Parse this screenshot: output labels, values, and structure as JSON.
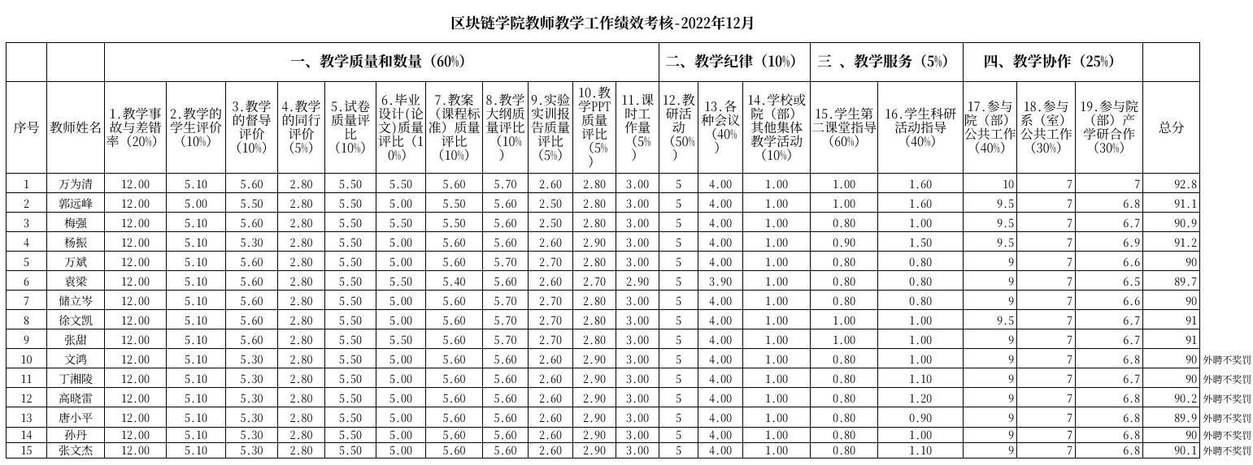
{
  "title": "区块链学院教师教学工作绩效考核-2022年12月",
  "table": {
    "corner_headers": [
      "序号",
      "教师姓名"
    ],
    "groups": [
      {
        "label": "一、教学质量和数量（60%）",
        "span": 11
      },
      {
        "label": "二、教学纪律（10%）",
        "span": 3
      },
      {
        "label": "三 、教学服务（5%）",
        "span": 2
      },
      {
        "label": "四、教学协作（25%）",
        "span": 3
      }
    ],
    "columns": [
      {
        "label": "1.教学事故与差错率（20%）"
      },
      {
        "label": "2.教学的学生评价（10%）"
      },
      {
        "label": "3.教学的督导评价（10%）"
      },
      {
        "label": "4.教学的同行评价（5%）"
      },
      {
        "label": "5.试卷质量评比（10%）"
      },
      {
        "label": "6.毕业设计(论文)质量评比（10%）"
      },
      {
        "label": "7.教案（课程标准）质量评比（10%）"
      },
      {
        "label": "8.教学大纲质量评比（10%）"
      },
      {
        "label": "9.实验实训报告质量评比（5%）"
      },
      {
        "label": "10.教学PPT质量评比（5%）"
      },
      {
        "label": "11.课时工作量（5%）"
      },
      {
        "label": "12.教研活动（50%）"
      },
      {
        "label": "13.各种会议（40%）"
      },
      {
        "label": "14.学校或院（部）其他集体教学活动（10%）"
      },
      {
        "label": "15.学生第二课堂指导（60%）"
      },
      {
        "label": "16.学生科研活动指导（40%）"
      },
      {
        "label": "17.参与院（部）公共工作（40%）"
      },
      {
        "label": "18.参与系（室）公共工作（30%）"
      },
      {
        "label": "19.参与院（部）产学研合作（30%）"
      }
    ],
    "total_header": "总分",
    "rows": [
      {
        "no": "1",
        "name": "万为清",
        "values": [
          "12.00",
          "5.10",
          "5.60",
          "2.80",
          "5.50",
          "5.50",
          "5.60",
          "5.70",
          "2.60",
          "2.80",
          "3.00",
          "5",
          "4.00",
          "1.00",
          "1.00",
          "1.60",
          "10",
          "7",
          "7"
        ],
        "total": "92.8",
        "note": ""
      },
      {
        "no": "2",
        "name": "郭远峰",
        "values": [
          "12.00",
          "5.00",
          "5.50",
          "2.80",
          "5.50",
          "5.00",
          "5.50",
          "5.60",
          "2.50",
          "2.80",
          "3.00",
          "5",
          "4.00",
          "1.00",
          "1.00",
          "1.60",
          "9.5",
          "7",
          "6.8"
        ],
        "total": "91.1",
        "note": ""
      },
      {
        "no": "3",
        "name": "梅强",
        "values": [
          "12.00",
          "5.10",
          "5.60",
          "2.80",
          "5.50",
          "5.50",
          "5.50",
          "5.60",
          "2.50",
          "2.80",
          "3.00",
          "5",
          "4.00",
          "1.00",
          "0.80",
          "1.00",
          "9.5",
          "7",
          "6.7"
        ],
        "total": "90.9",
        "note": ""
      },
      {
        "no": "4",
        "name": "杨振",
        "values": [
          "12.00",
          "5.10",
          "5.30",
          "2.80",
          "5.50",
          "5.00",
          "5.60",
          "5.60",
          "2.60",
          "2.90",
          "3.00",
          "5",
          "4.00",
          "1.00",
          "0.90",
          "1.50",
          "9.5",
          "7",
          "6.9"
        ],
        "total": "91.2",
        "note": ""
      },
      {
        "no": "5",
        "name": "万斌",
        "values": [
          "12.00",
          "5.10",
          "5.60",
          "2.80",
          "5.50",
          "5.00",
          "5.60",
          "5.70",
          "2.70",
          "2.80",
          "3.00",
          "5",
          "4.00",
          "1.00",
          "0.80",
          "0.80",
          "9",
          "7",
          "6.6"
        ],
        "total": "90",
        "note": ""
      },
      {
        "no": "6",
        "name": "袁梁",
        "values": [
          "12.00",
          "5.10",
          "5.60",
          "2.80",
          "5.50",
          "5.50",
          "5.40",
          "5.60",
          "2.60",
          "2.70",
          "2.90",
          "5",
          "3.90",
          "1.00",
          "0.80",
          "0.80",
          "9",
          "7",
          "6.5"
        ],
        "total": "89.7",
        "note": ""
      },
      {
        "no": "7",
        "name": "储立岑",
        "values": [
          "12.00",
          "5.10",
          "5.60",
          "2.80",
          "5.50",
          "5.00",
          "5.60",
          "5.70",
          "2.70",
          "2.80",
          "3.00",
          "5",
          "4.00",
          "1.00",
          "0.80",
          "0.80",
          "9",
          "7",
          "6.6"
        ],
        "total": "90",
        "note": ""
      },
      {
        "no": "8",
        "name": "徐文凯",
        "values": [
          "12.00",
          "5.10",
          "5.60",
          "2.80",
          "5.50",
          "5.00",
          "5.60",
          "5.70",
          "2.70",
          "2.80",
          "3.00",
          "5",
          "4.00",
          "1.00",
          "1.00",
          "1.00",
          "9.5",
          "7",
          "6.7"
        ],
        "total": "91",
        "note": ""
      },
      {
        "no": "9",
        "name": "张甜",
        "values": [
          "12.00",
          "5.10",
          "5.60",
          "2.80",
          "5.50",
          "5.50",
          "5.60",
          "5.70",
          "2.70",
          "2.80",
          "3.00",
          "5",
          "4.00",
          "1.00",
          "1.00",
          "1.00",
          "9",
          "7",
          "6.7"
        ],
        "total": "91",
        "note": ""
      },
      {
        "no": "10",
        "name": "文鸿",
        "values": [
          "12.00",
          "5.10",
          "5.30",
          "2.80",
          "5.50",
          "5.00",
          "5.60",
          "5.60",
          "2.60",
          "2.90",
          "3.00",
          "5",
          "4.00",
          "1.00",
          "0.80",
          "1.00",
          "9",
          "7",
          "6.8"
        ],
        "total": "90",
        "note": "外聘不奖罚"
      },
      {
        "no": "11",
        "name": "丁湘陵",
        "values": [
          "12.00",
          "5.10",
          "5.30",
          "2.80",
          "5.50",
          "5.00",
          "5.60",
          "5.60",
          "2.60",
          "2.90",
          "3.00",
          "5",
          "4.00",
          "1.00",
          "0.80",
          "1.10",
          "9",
          "7",
          "6.7"
        ],
        "total": "90",
        "note": "外聘不奖罚"
      },
      {
        "no": "12",
        "name": "高晓雷",
        "values": [
          "12.00",
          "5.10",
          "5.30",
          "2.80",
          "5.50",
          "5.00",
          "5.60",
          "5.60",
          "2.60",
          "2.90",
          "3.00",
          "5",
          "4.00",
          "1.00",
          "0.80",
          "1.20",
          "9",
          "7",
          "6.8"
        ],
        "total": "90.2",
        "note": "外聘不奖罚"
      },
      {
        "no": "13",
        "name": "唐小平",
        "values": [
          "12.00",
          "5.10",
          "5.30",
          "2.80",
          "5.50",
          "5.00",
          "5.60",
          "5.60",
          "2.60",
          "2.90",
          "3.00",
          "5",
          "4.00",
          "1.00",
          "0.80",
          "0.90",
          "9",
          "7",
          "6.8"
        ],
        "total": "89.9",
        "note": "外聘不奖罚"
      },
      {
        "no": "14",
        "name": "孙丹",
        "values": [
          "12.00",
          "5.10",
          "5.30",
          "2.80",
          "5.50",
          "5.00",
          "5.60",
          "5.60",
          "2.60",
          "2.90",
          "3.00",
          "5",
          "4.00",
          "1.00",
          "0.80",
          "1.00",
          "9",
          "7",
          "6.8"
        ],
        "total": "90",
        "note": "外聘不奖罚"
      },
      {
        "no": "15",
        "name": "张文杰",
        "values": [
          "12.00",
          "5.10",
          "5.30",
          "2.80",
          "5.50",
          "5.00",
          "5.60",
          "5.60",
          "2.60",
          "2.90",
          "3.00",
          "5",
          "4.00",
          "1.00",
          "0.80",
          "1.10",
          "9",
          "7",
          "6.8"
        ],
        "total": "90.1",
        "note": "外聘不奖罚"
      }
    ]
  },
  "colors": {
    "text": "#000000",
    "background": "#ffffff",
    "grid": "#000000"
  }
}
